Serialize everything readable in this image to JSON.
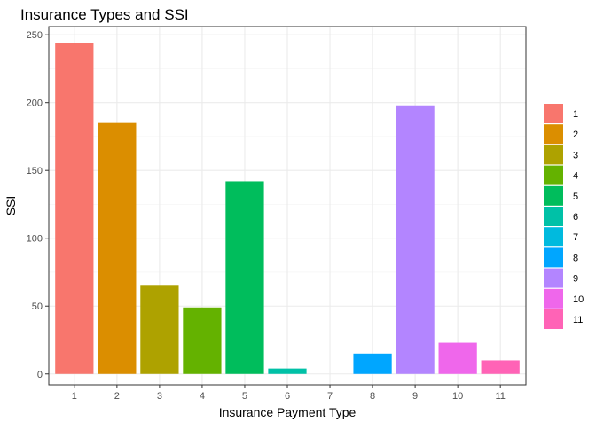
{
  "chart_data": {
    "type": "bar",
    "title": "Insurance Types and SSI",
    "xlabel": "Insurance Payment Type",
    "ylabel": "SSI",
    "categories": [
      "1",
      "2",
      "3",
      "4",
      "5",
      "6",
      "7",
      "8",
      "9",
      "10",
      "11"
    ],
    "values": [
      244,
      185,
      65,
      49,
      142,
      4,
      0,
      15,
      198,
      23,
      10
    ],
    "colors": [
      "#F8766D",
      "#DB8E00",
      "#AEA200",
      "#64B200",
      "#00BD5C",
      "#00C1A7",
      "#00BADE",
      "#00A6FF",
      "#B385FF",
      "#EF67EB",
      "#FF63B6"
    ],
    "ylim": [
      -8,
      256
    ],
    "yticks": [
      0,
      50,
      100,
      150,
      200,
      250
    ],
    "grid": true,
    "legend": {
      "position": "right",
      "entries": [
        "1",
        "2",
        "3",
        "4",
        "5",
        "6",
        "7",
        "8",
        "9",
        "10",
        "11"
      ]
    }
  }
}
